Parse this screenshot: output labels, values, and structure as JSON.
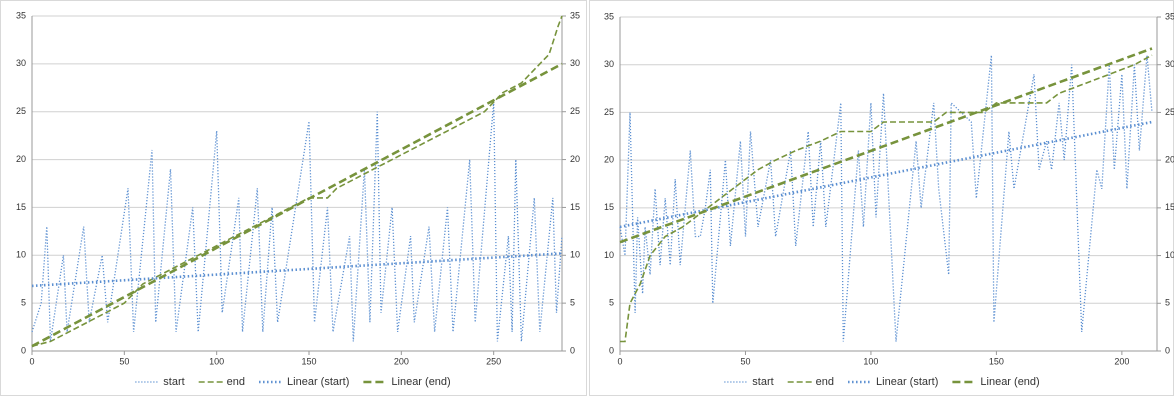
{
  "chart_data": [
    {
      "type": "line",
      "xlim": [
        0,
        287
      ],
      "xticks": [
        0,
        50,
        100,
        150,
        200,
        250
      ],
      "ylim": [
        0,
        35
      ],
      "yticks": [
        0,
        5,
        10,
        15,
        20,
        25,
        30,
        35
      ],
      "y2lim": [
        0,
        35
      ],
      "y2ticks": [
        0,
        5,
        10,
        15,
        20,
        25,
        30,
        35
      ],
      "grid": true,
      "legend": "bottom",
      "series": [
        {
          "name": "start",
          "color": "#5b8fd1",
          "style": "dotted",
          "x": [
            0,
            5,
            8,
            10,
            17,
            19,
            28,
            31,
            38,
            41,
            52,
            55,
            65,
            67,
            75,
            78,
            87,
            90,
            100,
            103,
            112,
            114,
            122,
            125,
            130,
            133,
            150,
            153,
            160,
            163,
            172,
            174,
            180,
            183,
            187,
            189,
            195,
            198,
            205,
            207,
            215,
            218,
            225,
            228,
            237,
            240,
            250,
            252,
            258,
            260,
            262,
            265,
            272,
            275,
            282,
            284,
            287
          ],
          "values": [
            2,
            5,
            13,
            1,
            10,
            2,
            13,
            3,
            10,
            3,
            17,
            2,
            21,
            3,
            19,
            2,
            15,
            2,
            23,
            4,
            16,
            2,
            17,
            2,
            15,
            3,
            24,
            3,
            15,
            2,
            12,
            1,
            19,
            3,
            25,
            4,
            15,
            2,
            12,
            3,
            13,
            2,
            15,
            2,
            20,
            3,
            26,
            1,
            12,
            2,
            20,
            1,
            16,
            2,
            16,
            4,
            12
          ]
        },
        {
          "name": "end",
          "color": "#77933c",
          "style": "dashed",
          "x": [
            0,
            10,
            20,
            30,
            40,
            50,
            60,
            70,
            80,
            90,
            100,
            110,
            120,
            130,
            140,
            150,
            160,
            165,
            175,
            185,
            195,
            205,
            215,
            225,
            235,
            245,
            255,
            265,
            275,
            280,
            285,
            287
          ],
          "values": [
            0.5,
            1,
            2,
            3,
            4,
            5,
            7,
            8,
            9,
            10,
            11,
            12,
            13,
            14,
            15,
            16,
            16,
            17,
            18,
            19,
            20,
            21,
            22,
            23,
            24,
            25,
            27,
            28,
            30,
            31,
            34,
            35
          ]
        },
        {
          "name": "Linear (start)",
          "color": "#5b8fd1",
          "style": "dotted-thick",
          "x": [
            0,
            287
          ],
          "values": [
            6.8,
            10.2
          ]
        },
        {
          "name": "Linear (end)",
          "color": "#77933c",
          "style": "dashed-thick",
          "x": [
            0,
            287
          ],
          "values": [
            0.5,
            30
          ]
        }
      ]
    },
    {
      "type": "line",
      "xlim": [
        0,
        214
      ],
      "xticks": [
        0,
        50,
        100,
        150,
        200
      ],
      "ylim": [
        0,
        35
      ],
      "yticks": [
        0,
        5,
        10,
        15,
        20,
        25,
        30,
        35
      ],
      "y2lim": [
        0,
        35
      ],
      "y2ticks": [
        0,
        5,
        10,
        15,
        20,
        25,
        30,
        35
      ],
      "grid": true,
      "legend": "bottom",
      "series": [
        {
          "name": "start",
          "color": "#5b8fd1",
          "style": "dotted",
          "x": [
            0,
            2,
            4,
            6,
            7,
            9,
            10,
            12,
            14,
            16,
            18,
            20,
            22,
            24,
            28,
            30,
            32,
            34,
            36,
            37,
            42,
            44,
            48,
            50,
            52,
            55,
            60,
            62,
            68,
            70,
            75,
            77,
            80,
            82,
            88,
            89,
            95,
            97,
            100,
            102,
            105,
            110,
            118,
            120,
            125,
            127,
            131,
            132,
            140,
            142,
            148,
            149,
            155,
            157,
            165,
            167,
            170,
            172,
            175,
            177,
            180,
            184,
            190,
            192,
            195,
            197,
            200,
            202,
            205,
            207,
            210,
            212
          ],
          "values": [
            13,
            10,
            25,
            4,
            14,
            6,
            13,
            8,
            17,
            9,
            16,
            9,
            18,
            9,
            21,
            12,
            12,
            15,
            19,
            5,
            20,
            11,
            22,
            12,
            23,
            13,
            20,
            12,
            21,
            11,
            23,
            13,
            22,
            13,
            26,
            1,
            21,
            13,
            26,
            14,
            27,
            1,
            22,
            15,
            26,
            17,
            8,
            26,
            24,
            16,
            31,
            3,
            23,
            17,
            29,
            19,
            22,
            19,
            26,
            20,
            30,
            2,
            19,
            17,
            30,
            19,
            29,
            17,
            30,
            21,
            31,
            25
          ]
        },
        {
          "name": "end",
          "color": "#77933c",
          "style": "dashed",
          "x": [
            0,
            2,
            4,
            8,
            12,
            18,
            25,
            30,
            40,
            45,
            50,
            55,
            62,
            70,
            80,
            88,
            100,
            105,
            125,
            130,
            145,
            150,
            170,
            175,
            185,
            195,
            205,
            212
          ],
          "values": [
            1,
            1,
            5,
            7,
            10,
            12,
            13,
            14,
            16,
            17,
            18,
            19,
            20,
            21,
            22,
            23,
            23,
            24,
            24,
            25,
            25,
            26,
            26,
            27,
            28,
            29,
            30,
            31
          ]
        },
        {
          "name": "Linear (start)",
          "color": "#5b8fd1",
          "style": "dotted-thick",
          "x": [
            0,
            212
          ],
          "values": [
            13,
            24
          ]
        },
        {
          "name": "Linear (end)",
          "color": "#77933c",
          "style": "dashed-thick",
          "x": [
            0,
            212
          ],
          "values": [
            11.4,
            31.7
          ]
        }
      ]
    }
  ]
}
